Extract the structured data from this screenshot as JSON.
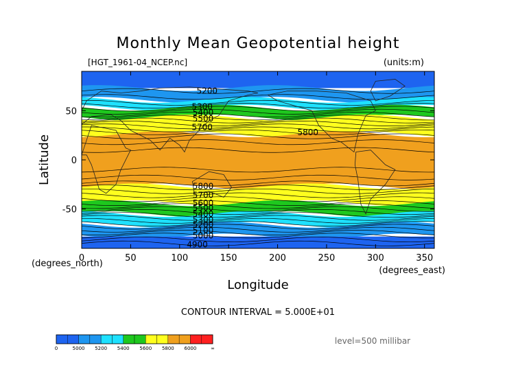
{
  "chart_data": {
    "type": "contour",
    "title": "Monthly Mean Geopotential height",
    "file_label": "[HGT_1961-04_NCEP.nc]",
    "units_label": "(units:m)",
    "xlabel": "Longitude",
    "ylabel": "Latitude",
    "x_unit_label": "(degrees_east)",
    "y_unit_label": "(degrees_north)",
    "xlim": [
      0,
      360
    ],
    "ylim": [
      -90,
      90
    ],
    "x_ticks": [
      0,
      50,
      100,
      150,
      200,
      250,
      300,
      350
    ],
    "y_ticks": [
      50,
      0,
      -50
    ],
    "contour_interval_text": "CONTOUR INTERVAL = 5.000E+01",
    "level_text": "level=500 millibar",
    "contour_labels": [
      {
        "value": "5200",
        "lon": 128,
        "lat": 70
      },
      {
        "value": "5300",
        "lon": 123,
        "lat": 54
      },
      {
        "value": "5400",
        "lon": 124,
        "lat": 48
      },
      {
        "value": "5500",
        "lon": 124,
        "lat": 42
      },
      {
        "value": "5700",
        "lon": 123,
        "lat": 33
      },
      {
        "value": "5800",
        "lon": 231,
        "lat": 28
      },
      {
        "value": "5800",
        "lon": 124,
        "lat": -27
      },
      {
        "value": "5700",
        "lon": 124,
        "lat": -36
      },
      {
        "value": "5600",
        "lon": 124,
        "lat": -44
      },
      {
        "value": "5500",
        "lon": 124,
        "lat": -49
      },
      {
        "value": "5400",
        "lon": 124,
        "lat": -55
      },
      {
        "value": "5300",
        "lon": 124,
        "lat": -61
      },
      {
        "value": "5200",
        "lon": 124,
        "lat": -66
      },
      {
        "value": "5100",
        "lon": 124,
        "lat": -72
      },
      {
        "value": "5000",
        "lon": 124,
        "lat": -77
      },
      {
        "value": "4900",
        "lon": 118,
        "lat": -86
      }
    ],
    "color_levels": [
      {
        "min": 0,
        "max": 5000,
        "color": "#1e64f0"
      },
      {
        "min": 5000,
        "max": 5200,
        "color": "#1e96f0"
      },
      {
        "min": 5200,
        "max": 5400,
        "color": "#1ee1ff"
      },
      {
        "min": 5400,
        "max": 5600,
        "color": "#1ec81e"
      },
      {
        "min": 5600,
        "max": 5800,
        "color": "#ffff1e"
      },
      {
        "min": 5800,
        "max": 6000,
        "color": "#f0a01e"
      },
      {
        "min": 6000,
        "max": 99999,
        "color": "#ff2020"
      }
    ],
    "colorbar_tick_labels": [
      "0",
      "5000",
      "5200",
      "5400",
      "5600",
      "5800",
      "6000",
      "∞"
    ],
    "grid": false,
    "legend": "bottom"
  }
}
